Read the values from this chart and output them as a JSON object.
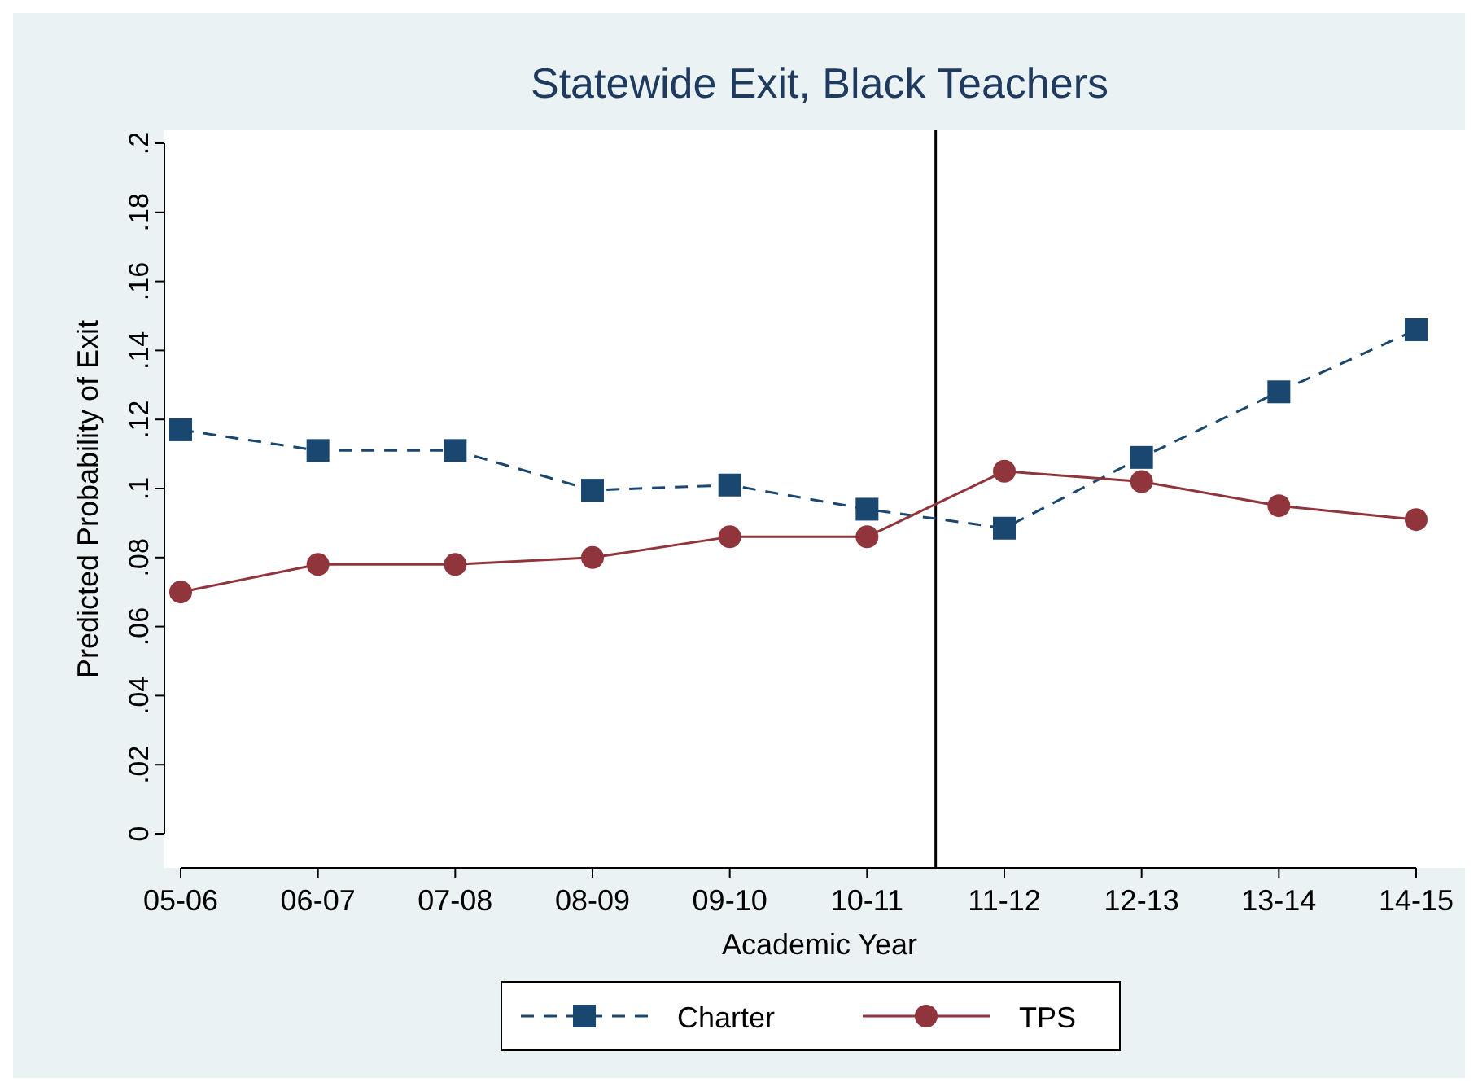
{
  "chart_data": {
    "type": "line",
    "title": "Statewide Exit, Black Teachers",
    "xlabel": "Academic Year",
    "ylabel": "Predicted Probability of Exit",
    "categories": [
      "05-06",
      "06-07",
      "07-08",
      "08-09",
      "09-10",
      "10-11",
      "11-12",
      "12-13",
      "13-14",
      "14-15"
    ],
    "ylim": [
      0,
      0.2
    ],
    "yticks": [
      {
        "value": 0,
        "label": "0"
      },
      {
        "value": 0.02,
        "label": ".02"
      },
      {
        "value": 0.04,
        "label": ".04"
      },
      {
        "value": 0.06,
        "label": ".06"
      },
      {
        "value": 0.08,
        "label": ".08"
      },
      {
        "value": 0.1,
        "label": ".1"
      },
      {
        "value": 0.12,
        "label": ".12"
      },
      {
        "value": 0.14,
        "label": ".14"
      },
      {
        "value": 0.16,
        "label": ".16"
      },
      {
        "value": 0.18,
        "label": ".18"
      },
      {
        "value": 0.2,
        "label": ".2"
      }
    ],
    "series": [
      {
        "name": "Charter",
        "color": "#1a476f",
        "marker": "square",
        "line_style": "dashed",
        "values": [
          0.117,
          0.111,
          0.111,
          0.0995,
          0.101,
          0.094,
          0.0885,
          0.109,
          0.128,
          0.146
        ]
      },
      {
        "name": "TPS",
        "color": "#90353b",
        "marker": "circle",
        "line_style": "solid",
        "values": [
          0.07,
          0.078,
          0.078,
          0.08,
          0.086,
          0.086,
          0.105,
          0.102,
          0.095,
          0.091
        ]
      }
    ],
    "grid": false,
    "legend": "bottom"
  }
}
